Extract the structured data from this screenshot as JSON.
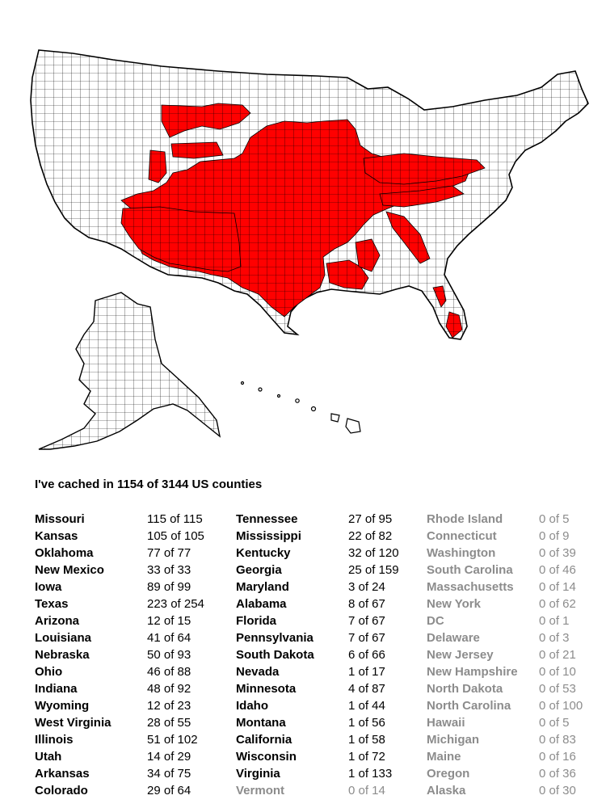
{
  "summary": "I've cached in 1154 of 3144 US counties",
  "colors": {
    "cached": "#ff0000",
    "uncached": "#ffffff",
    "zero_text": "#8c8c8c"
  },
  "states": [
    {
      "name": "Missouri",
      "count": "115 of 115",
      "cached": 115
    },
    {
      "name": "Kansas",
      "count": "105 of 105",
      "cached": 105
    },
    {
      "name": "Oklahoma",
      "count": "77 of 77",
      "cached": 77
    },
    {
      "name": "New Mexico",
      "count": "33 of 33",
      "cached": 33
    },
    {
      "name": "Iowa",
      "count": "89 of 99",
      "cached": 89
    },
    {
      "name": "Texas",
      "count": "223 of 254",
      "cached": 223
    },
    {
      "name": "Arizona",
      "count": "12 of 15",
      "cached": 12
    },
    {
      "name": "Louisiana",
      "count": "41 of 64",
      "cached": 41
    },
    {
      "name": "Nebraska",
      "count": "50 of 93",
      "cached": 50
    },
    {
      "name": "Ohio",
      "count": "46 of 88",
      "cached": 46
    },
    {
      "name": "Indiana",
      "count": "48 of 92",
      "cached": 48
    },
    {
      "name": "Wyoming",
      "count": "12 of 23",
      "cached": 12
    },
    {
      "name": "West Virginia",
      "count": "28 of 55",
      "cached": 28
    },
    {
      "name": "Illinois",
      "count": "51 of 102",
      "cached": 51
    },
    {
      "name": "Utah",
      "count": "14 of 29",
      "cached": 14
    },
    {
      "name": "Arkansas",
      "count": "34 of 75",
      "cached": 34
    },
    {
      "name": "Colorado",
      "count": "29 of 64",
      "cached": 29
    },
    {
      "name": "Tennessee",
      "count": "27 of 95",
      "cached": 27
    },
    {
      "name": "Mississippi",
      "count": "22 of 82",
      "cached": 22
    },
    {
      "name": "Kentucky",
      "count": "32 of 120",
      "cached": 32
    },
    {
      "name": "Georgia",
      "count": "25 of 159",
      "cached": 25
    },
    {
      "name": "Maryland",
      "count": "3 of 24",
      "cached": 3
    },
    {
      "name": "Alabama",
      "count": "8 of 67",
      "cached": 8
    },
    {
      "name": "Florida",
      "count": "7 of 67",
      "cached": 7
    },
    {
      "name": "Pennsylvania",
      "count": "7 of 67",
      "cached": 7
    },
    {
      "name": "South Dakota",
      "count": "6 of 66",
      "cached": 6
    },
    {
      "name": "Nevada",
      "count": "1 of 17",
      "cached": 1
    },
    {
      "name": "Minnesota",
      "count": "4 of 87",
      "cached": 4
    },
    {
      "name": "Idaho",
      "count": "1 of 44",
      "cached": 1
    },
    {
      "name": "Montana",
      "count": "1 of 56",
      "cached": 1
    },
    {
      "name": "California",
      "count": "1 of 58",
      "cached": 1
    },
    {
      "name": "Wisconsin",
      "count": "1 of 72",
      "cached": 1
    },
    {
      "name": "Virginia",
      "count": "1 of 133",
      "cached": 1
    },
    {
      "name": "Vermont",
      "count": "0 of 14",
      "cached": 0
    },
    {
      "name": "Rhode Island",
      "count": "0 of 5",
      "cached": 0
    },
    {
      "name": "Connecticut",
      "count": "0 of 9",
      "cached": 0
    },
    {
      "name": "Washington",
      "count": "0 of 39",
      "cached": 0
    },
    {
      "name": "South Carolina",
      "count": "0 of 46",
      "cached": 0
    },
    {
      "name": "Massachusetts",
      "count": "0 of 14",
      "cached": 0
    },
    {
      "name": "New York",
      "count": "0 of 62",
      "cached": 0
    },
    {
      "name": "DC",
      "count": "0 of 1",
      "cached": 0
    },
    {
      "name": "Delaware",
      "count": "0 of 3",
      "cached": 0
    },
    {
      "name": "New Jersey",
      "count": "0 of 21",
      "cached": 0
    },
    {
      "name": "New Hampshire",
      "count": "0 of 10",
      "cached": 0
    },
    {
      "name": "North Dakota",
      "count": "0 of 53",
      "cached": 0
    },
    {
      "name": "North Carolina",
      "count": "0 of 100",
      "cached": 0
    },
    {
      "name": "Hawaii",
      "count": "0 of 5",
      "cached": 0
    },
    {
      "name": "Michigan",
      "count": "0 of 83",
      "cached": 0
    },
    {
      "name": "Maine",
      "count": "0 of 16",
      "cached": 0
    },
    {
      "name": "Oregon",
      "count": "0 of 36",
      "cached": 0
    },
    {
      "name": "Alaska",
      "count": "0 of 30",
      "cached": 0
    }
  ]
}
